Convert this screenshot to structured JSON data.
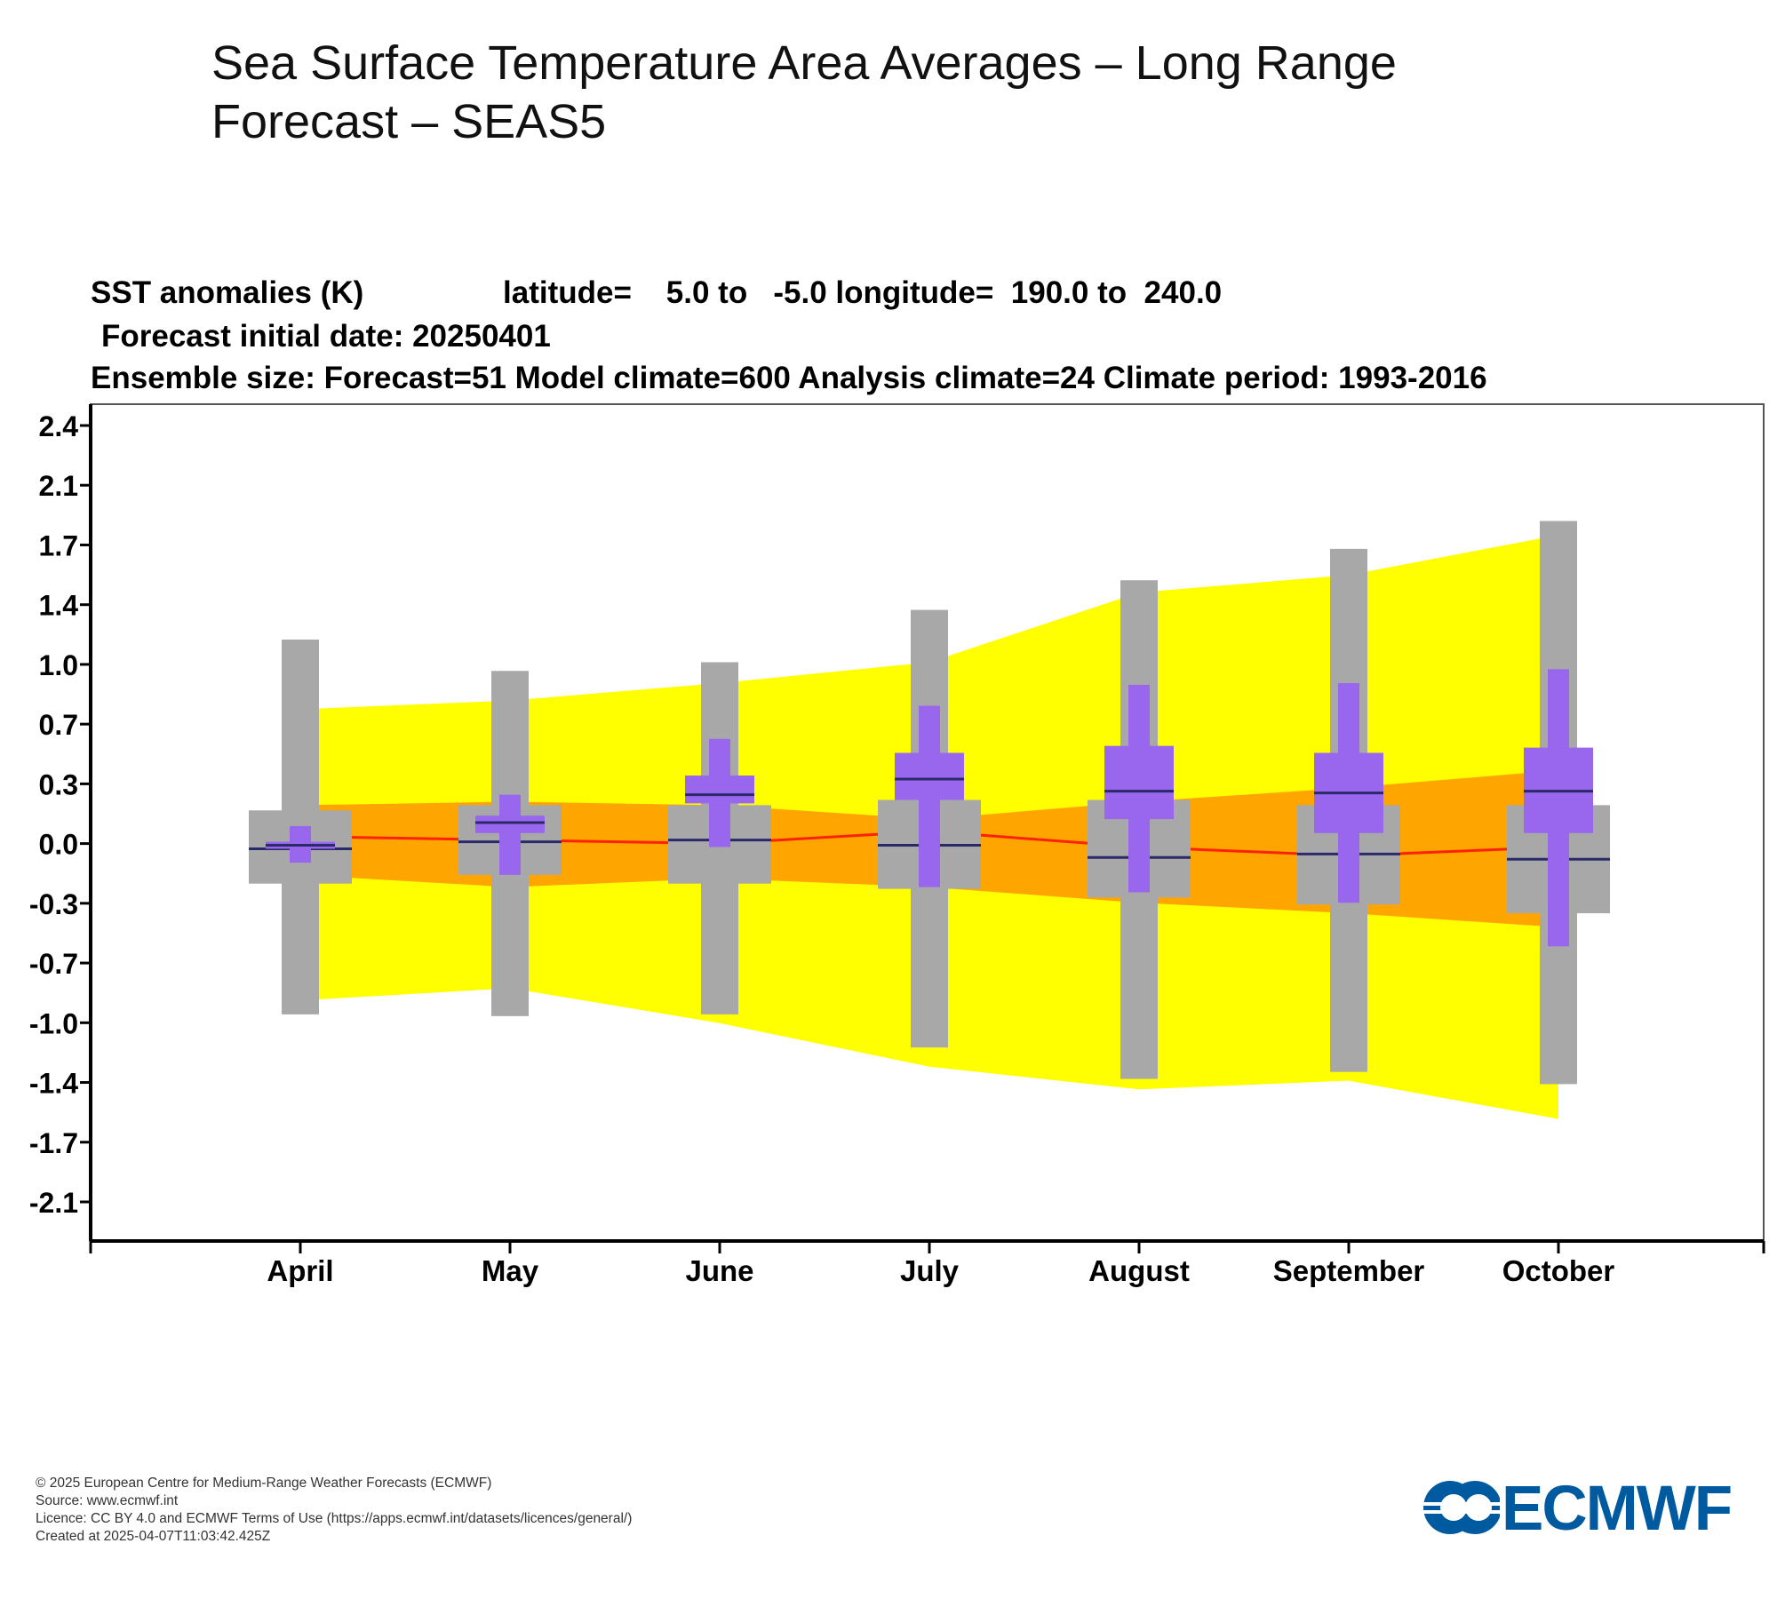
{
  "page": {
    "title_line1": "Sea Surface Temperature Area Averages – Long Range",
    "title_line2": "Forecast – SEAS5"
  },
  "chart_header": {
    "line1_a": "SST anomalies (K)",
    "line1_b": "latitude=    5.0 to   -5.0 longitude=  190.0 to  240.0",
    "line2": "Forecast initial date: 20250401",
    "line3": "Ensemble size: Forecast=51 Model climate=600 Analysis climate=24   Climate period: 1993-2016"
  },
  "chart_data": {
    "type": "box",
    "categories": [
      "April",
      "May",
      "June",
      "July",
      "August",
      "September",
      "October"
    ],
    "y_ticks": [
      "2.4",
      "2.1",
      "1.7",
      "1.4",
      "1.0",
      "0.7",
      "0.3",
      "0.0",
      "-0.3",
      "-0.7",
      "-1.0",
      "-1.4",
      "-1.7",
      "-2.1"
    ],
    "ylim": [
      -2.3,
      2.5
    ],
    "model_climate": {
      "outer_band": {
        "upper": [
          0.75,
          0.8,
          0.9,
          1.02,
          1.42,
          1.52,
          1.75
        ],
        "lower": [
          -0.92,
          -0.85,
          -1.05,
          -1.3,
          -1.43,
          -1.38,
          -1.6
        ]
      },
      "inner_band": {
        "upper": [
          0.2,
          0.22,
          0.2,
          0.12,
          0.22,
          0.3,
          0.4
        ],
        "lower": [
          -0.2,
          -0.27,
          -0.22,
          -0.27,
          -0.36,
          -0.42,
          -0.5
        ]
      },
      "median_line": [
        0.02,
        0.0,
        -0.02,
        0.05,
        -0.04,
        -0.09,
        -0.04
      ],
      "colors": {
        "outer": "#ffff00",
        "inner": "#ffa500",
        "median": "#ff2200"
      }
    },
    "model_climate_box": {
      "whisker": [
        [
          -1.0,
          1.15
        ],
        [
          -1.01,
          0.97
        ],
        [
          -1.0,
          1.02
        ],
        [
          -1.19,
          1.32
        ],
        [
          -1.37,
          1.49
        ],
        [
          -1.33,
          1.67
        ],
        [
          -1.4,
          1.83
        ]
      ],
      "box": [
        [
          -0.25,
          0.17
        ],
        [
          -0.2,
          0.2
        ],
        [
          -0.25,
          0.2
        ],
        [
          -0.28,
          0.23
        ],
        [
          -0.33,
          0.23
        ],
        [
          -0.37,
          0.2
        ],
        [
          -0.42,
          0.2
        ]
      ],
      "median": [
        -0.05,
        -0.01,
        0.0,
        -0.03,
        -0.1,
        -0.08,
        -0.11
      ],
      "color": "#a8a8a8"
    },
    "forecast_box": {
      "whisker": [
        [
          -0.13,
          0.08
        ],
        [
          -0.2,
          0.26
        ],
        [
          -0.04,
          0.58
        ],
        [
          -0.27,
          0.77
        ],
        [
          -0.3,
          0.89
        ],
        [
          -0.36,
          0.9
        ],
        [
          -0.61,
          0.98
        ]
      ],
      "box": [
        [
          -0.05,
          -0.01
        ],
        [
          0.04,
          0.14
        ],
        [
          0.21,
          0.37
        ],
        [
          0.23,
          0.5
        ],
        [
          0.12,
          0.54
        ],
        [
          0.04,
          0.5
        ],
        [
          0.04,
          0.53
        ]
      ],
      "median": [
        -0.03,
        0.1,
        0.26,
        0.35,
        0.28,
        0.27,
        0.28
      ],
      "color": "#9966ee"
    }
  },
  "footer": {
    "copyright": "© 2025 European Centre for Medium-Range Weather Forecasts (ECMWF)",
    "source": "Source: www.ecmwf.int",
    "licence": "Licence: CC BY 4.0 and ECMWF Terms of Use (https://apps.ecmwf.int/datasets/licences/general/)",
    "created": "Created at 2025-04-07T11:03:42.425Z"
  },
  "logo": {
    "text": "ECMWF",
    "color": "#005aa0"
  }
}
